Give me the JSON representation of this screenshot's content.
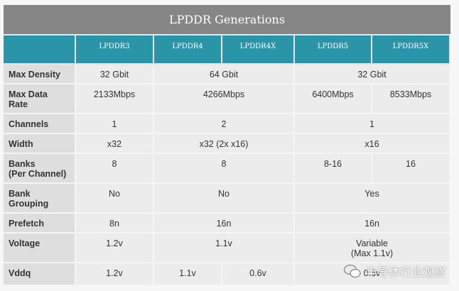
{
  "title": "LPDDR Generations",
  "columns": [
    "",
    "LPDDR3",
    "LPDDR4",
    "LPDDR4X",
    "LPDDR5",
    "LPDDR5X"
  ],
  "rows": [
    {
      "label": "Max Density",
      "cells": [
        {
          "v": "32 Gbit",
          "span": 1
        },
        {
          "v": "64 Gbit",
          "span": 2
        },
        {
          "v": "32 Gbit",
          "span": 2
        }
      ]
    },
    {
      "label": "Max Data Rate",
      "cells": [
        {
          "v": "2133Mbps",
          "span": 1
        },
        {
          "v": "4266Mbps",
          "span": 2
        },
        {
          "v": "6400Mbps",
          "span": 1
        },
        {
          "v": "8533Mbps",
          "span": 1
        }
      ]
    },
    {
      "label": "Channels",
      "cells": [
        {
          "v": "1",
          "span": 1
        },
        {
          "v": "2",
          "span": 2
        },
        {
          "v": "1",
          "span": 2
        }
      ]
    },
    {
      "label": "Width",
      "cells": [
        {
          "v": "x32",
          "span": 1
        },
        {
          "v": "x32 (2x x16)",
          "span": 2
        },
        {
          "v": "x16",
          "span": 2
        }
      ]
    },
    {
      "label": "Banks (Per Channel)",
      "cells": [
        {
          "v": "8",
          "span": 1
        },
        {
          "v": "8",
          "span": 2
        },
        {
          "v": "8-16",
          "span": 1
        },
        {
          "v": "16",
          "span": 1
        }
      ]
    },
    {
      "label": "Bank Grouping",
      "cells": [
        {
          "v": "No",
          "span": 1
        },
        {
          "v": "No",
          "span": 2
        },
        {
          "v": "Yes",
          "span": 2
        }
      ]
    },
    {
      "label": "Prefetch",
      "cells": [
        {
          "v": "8n",
          "span": 1
        },
        {
          "v": "16n",
          "span": 2
        },
        {
          "v": "16n",
          "span": 2
        }
      ]
    },
    {
      "label": "Voltage",
      "cells": [
        {
          "v": "1.2v",
          "span": 1
        },
        {
          "v": "1.1v",
          "span": 2
        },
        {
          "v": "Variable\n(Max 1.1v)",
          "span": 2
        }
      ]
    },
    {
      "label": "Vddq",
      "cells": [
        {
          "v": "1.2v",
          "span": 1
        },
        {
          "v": "1.1v",
          "span": 1
        },
        {
          "v": "0.6v",
          "span": 1
        },
        {
          "v": "0.6v",
          "span": 2
        }
      ]
    }
  ],
  "watermark": "半导体行业观察",
  "colors": {
    "title_bg": "#868686",
    "header_bg": "#2a95a9",
    "label_bg": "#dedede",
    "cell_bg": "#ececec"
  }
}
